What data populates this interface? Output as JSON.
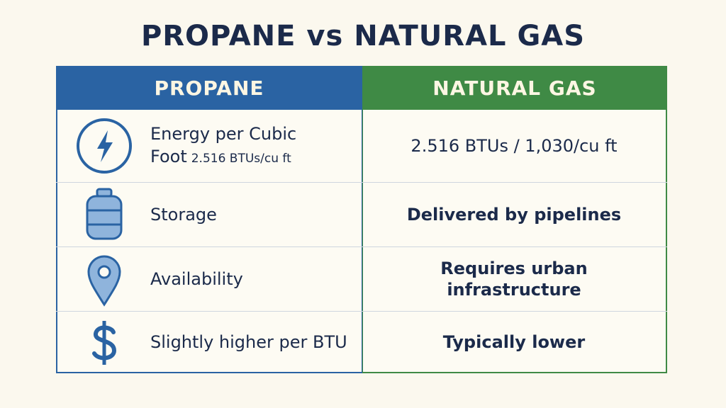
{
  "title": "PROPANE vs NATURAL GAS",
  "table": {
    "headers": [
      "PROPANE",
      "NATURAL GAS"
    ],
    "rows": [
      {
        "left": "Energy per Cubic Foot",
        "left_note": "2.516 BTUs/cu ft",
        "right": "2.516 BTUs / 1,030/cu ft"
      },
      {
        "left": "Storage",
        "right": "Delivered by pipelines"
      },
      {
        "left": "Availability",
        "right": "Requires urban infrastructure"
      },
      {
        "left": "Slightly higher per BTU",
        "right": "Typically lower"
      }
    ]
  }
}
